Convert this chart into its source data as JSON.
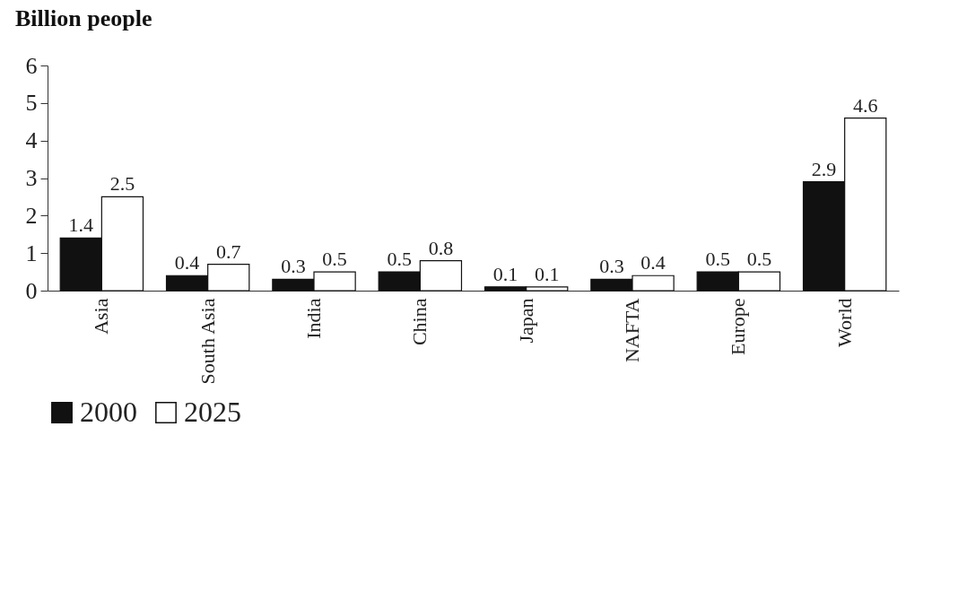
{
  "chart_data": {
    "type": "bar",
    "title": "Billion people",
    "categories": [
      "Asia",
      "South Asia",
      "India",
      "China",
      "Japan",
      "NAFTA",
      "Europe",
      "World"
    ],
    "series": [
      {
        "name": "2000",
        "color": "#111111",
        "values": [
          1.4,
          0.4,
          0.3,
          0.5,
          0.1,
          0.3,
          0.5,
          2.9
        ]
      },
      {
        "name": "2025",
        "color": "#ffffff",
        "values": [
          2.5,
          0.7,
          0.5,
          0.8,
          0.1,
          0.4,
          0.5,
          4.6
        ]
      }
    ],
    "ylim": [
      0,
      6
    ],
    "yticks": [
      0,
      1,
      2,
      3,
      4,
      5,
      6
    ],
    "legend": "bottom",
    "data_labels": true
  }
}
